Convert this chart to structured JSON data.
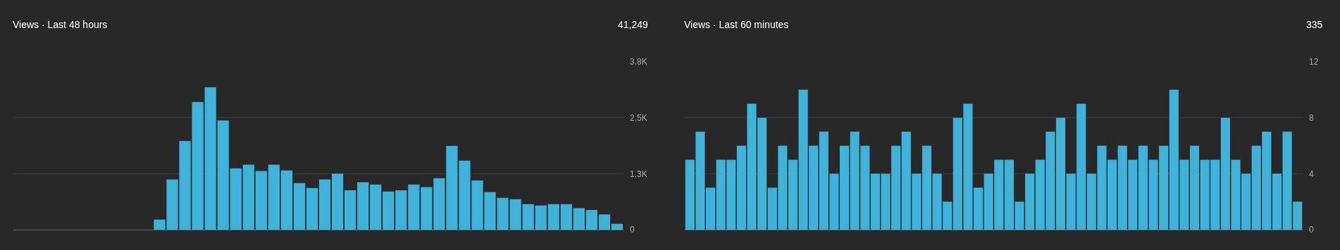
{
  "chart_data": [
    {
      "type": "bar",
      "title": "Views · Last 48 hours",
      "annotations": [
        "41,249"
      ],
      "color": "#3fb2d9",
      "grid": "y",
      "tick_labels": "y",
      "categories": [
        null,
        null,
        null,
        null,
        null,
        null,
        null,
        null,
        null,
        null,
        null,
        null,
        null,
        null,
        null,
        null,
        null,
        null,
        null,
        null,
        null,
        null,
        null,
        null,
        null,
        null,
        null,
        null,
        null,
        null,
        null,
        null,
        null,
        null,
        null,
        null,
        null,
        null,
        null,
        null,
        null,
        null,
        null,
        null,
        null,
        null,
        null,
        null
      ],
      "values": [
        0,
        0,
        0,
        0,
        0,
        0,
        0,
        0,
        0,
        0,
        0,
        225,
        1120,
        1980,
        2850,
        3180,
        2440,
        1370,
        1450,
        1310,
        1450,
        1320,
        1040,
        930,
        1120,
        1250,
        880,
        1060,
        1010,
        850,
        880,
        1010,
        950,
        1150,
        1870,
        1540,
        1100,
        840,
        710,
        680,
        570,
        540,
        570,
        570,
        480,
        440,
        340,
        130
      ],
      "ylim": [
        0,
        3750
      ],
      "yticks": [
        0,
        {
          "value": 1250,
          "label": "1.3K"
        },
        {
          "value": 2500,
          "label": "2.5K"
        },
        {
          "value": 3750,
          "label": "3.8K"
        }
      ]
    },
    {
      "type": "bar",
      "title": "Views · Last 60 minutes",
      "annotations": [
        "335"
      ],
      "color": "#3fb2d9",
      "grid": "y",
      "tick_labels": "y",
      "categories": [
        null,
        null,
        null,
        null,
        null,
        null,
        null,
        null,
        null,
        null,
        null,
        null,
        null,
        null,
        null,
        null,
        null,
        null,
        null,
        null,
        null,
        null,
        null,
        null,
        null,
        null,
        null,
        null,
        null,
        null,
        null,
        null,
        null,
        null,
        null,
        null,
        null,
        null,
        null,
        null,
        null,
        null,
        null,
        null,
        null,
        null,
        null,
        null,
        null,
        null,
        null,
        null,
        null,
        null,
        null,
        null,
        null,
        null,
        null,
        null
      ],
      "values": [
        5,
        7,
        3,
        5,
        5,
        6,
        9,
        8,
        3,
        6,
        5,
        10,
        6,
        7,
        4,
        6,
        7,
        6,
        4,
        4,
        6,
        7,
        4,
        6,
        4,
        2,
        8,
        9,
        3,
        4,
        5,
        5,
        2,
        4,
        5,
        7,
        8,
        4,
        9,
        4,
        6,
        5,
        6,
        5,
        6,
        5,
        6,
        10,
        5,
        6,
        5,
        5,
        8,
        5,
        4,
        6,
        7,
        4,
        7,
        2
      ],
      "ylim": [
        0,
        12
      ],
      "yticks": [
        0,
        4,
        8,
        12
      ]
    }
  ]
}
